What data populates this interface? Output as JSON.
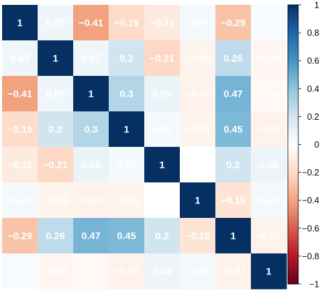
{
  "chart_data": {
    "type": "heatmap",
    "matrix": [
      [
        1,
        0.07,
        -0.41,
        -0.19,
        -0.11,
        0.05,
        -0.29,
        0.03
      ],
      [
        0.07,
        1,
        0.07,
        0.2,
        -0.21,
        -0.06,
        0.26,
        -0.05
      ],
      [
        -0.41,
        0.07,
        1,
        0.3,
        0.09,
        -0.07,
        0.47,
        -0.04
      ],
      [
        -0.19,
        0.2,
        0.3,
        1,
        0.05,
        -0.06,
        0.45,
        -0.07
      ],
      [
        -0.11,
        -0.21,
        0.09,
        0.05,
        1,
        0,
        0.2,
        0.08
      ],
      [
        0.05,
        -0.06,
        -0.07,
        -0.06,
        0,
        1,
        -0.15,
        0.05
      ],
      [
        -0.29,
        0.26,
        0.47,
        0.45,
        0.2,
        -0.15,
        1,
        -0.07
      ],
      [
        0.03,
        -0.05,
        -0.04,
        -0.07,
        0.08,
        0.05,
        -0.07,
        1
      ]
    ],
    "cell_labels": [
      [
        "1",
        "0.07",
        "−0.41",
        "−0.19",
        "−0.11",
        "0.05",
        "−0.29",
        "0.03"
      ],
      [
        "0.07",
        "1",
        "0.07",
        "0.2",
        "−0.21",
        "−0.06",
        "0.26",
        "−0.05"
      ],
      [
        "−0.41",
        "0.07",
        "1",
        "0.3",
        "0.09",
        "−0.07",
        "0.47",
        "−0.04"
      ],
      [
        "−0.19",
        "0.2",
        "0.3",
        "1",
        "0.05",
        "−0.06",
        "0.45",
        "−0.07"
      ],
      [
        "−0.11",
        "−0.21",
        "0.09",
        "0.05",
        "1",
        "",
        "0.2",
        "0.08"
      ],
      [
        "0.05",
        "−0.06",
        "−0.07",
        "−0.06",
        "",
        "1",
        "−0.15",
        "0.05"
      ],
      [
        "−0.29",
        "0.26",
        "0.47",
        "0.45",
        "0.2",
        "−0.15",
        "1",
        "−0.07"
      ],
      [
        "0.03",
        "−0.05",
        "−0.04",
        "−0.07",
        "0.08",
        "0.05",
        "−0.07",
        "1"
      ]
    ],
    "colorbar": {
      "min": -1,
      "max": 1,
      "ticks": [
        1,
        0.8,
        0.6,
        0.4,
        0.2,
        0,
        -0.2,
        -0.4,
        -0.6,
        -0.8,
        -1
      ],
      "tick_labels": [
        "1",
        "0.8",
        "0.6",
        "0.4",
        "0.2",
        "0",
        "−0.2",
        "−0.4",
        "−0.6",
        "−0.8",
        "−1"
      ]
    },
    "colors": {
      "negative_end": "#67001f",
      "neg_strong": "#d6604d",
      "neg_mid": "#f4a582",
      "neg_light": "#fddbc7",
      "neutral": "#ffffff",
      "pos_light": "#d1e5f0",
      "pos_mid": "#92c5de",
      "pos_strong": "#4393c3",
      "pos_dark": "#2166ac",
      "positive_end": "#053061",
      "label_text": "#ffffff"
    },
    "grid": false,
    "legend": "colorbar-right"
  }
}
